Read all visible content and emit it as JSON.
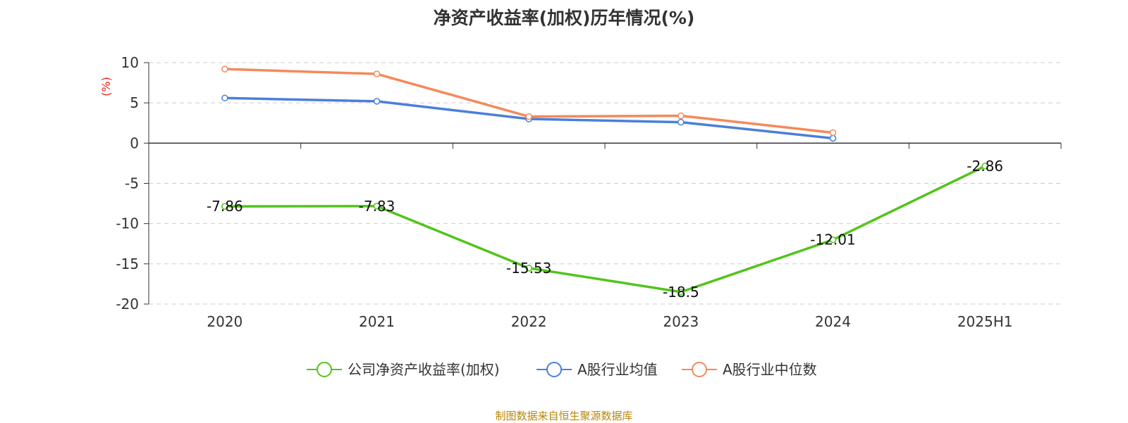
{
  "chart_data": {
    "type": "line",
    "title": "净资产收益率(加权)历年情况(%)",
    "ylabel": "(%)",
    "xlabel": "",
    "categories": [
      "2020",
      "2021",
      "2022",
      "2023",
      "2024",
      "2025H1"
    ],
    "ylim": [
      -20,
      10
    ],
    "yticks": [
      10,
      5,
      0,
      -5,
      -10,
      -15,
      -20
    ],
    "grid": "dashed horizontal",
    "legend_position": "bottom-center",
    "series": [
      {
        "name": "公司净资产收益率(加权)",
        "color": "#52c41a",
        "values": [
          -7.86,
          -7.83,
          -15.53,
          -18.5,
          -12.01,
          -2.86
        ],
        "labels": [
          "-7.86",
          "-7.83",
          "-15.53",
          "-18.5",
          "-12.01",
          "-2.86"
        ]
      },
      {
        "name": "A股行业均值",
        "color": "#4a7fdb",
        "values": [
          5.6,
          5.2,
          3.0,
          2.6,
          0.6,
          null
        ]
      },
      {
        "name": "A股行业中位数",
        "color": "#f5895a",
        "values": [
          9.2,
          8.6,
          3.3,
          3.4,
          1.3,
          null
        ]
      }
    ]
  },
  "footer": {
    "source": "制图数据来自恒生聚源数据库"
  }
}
